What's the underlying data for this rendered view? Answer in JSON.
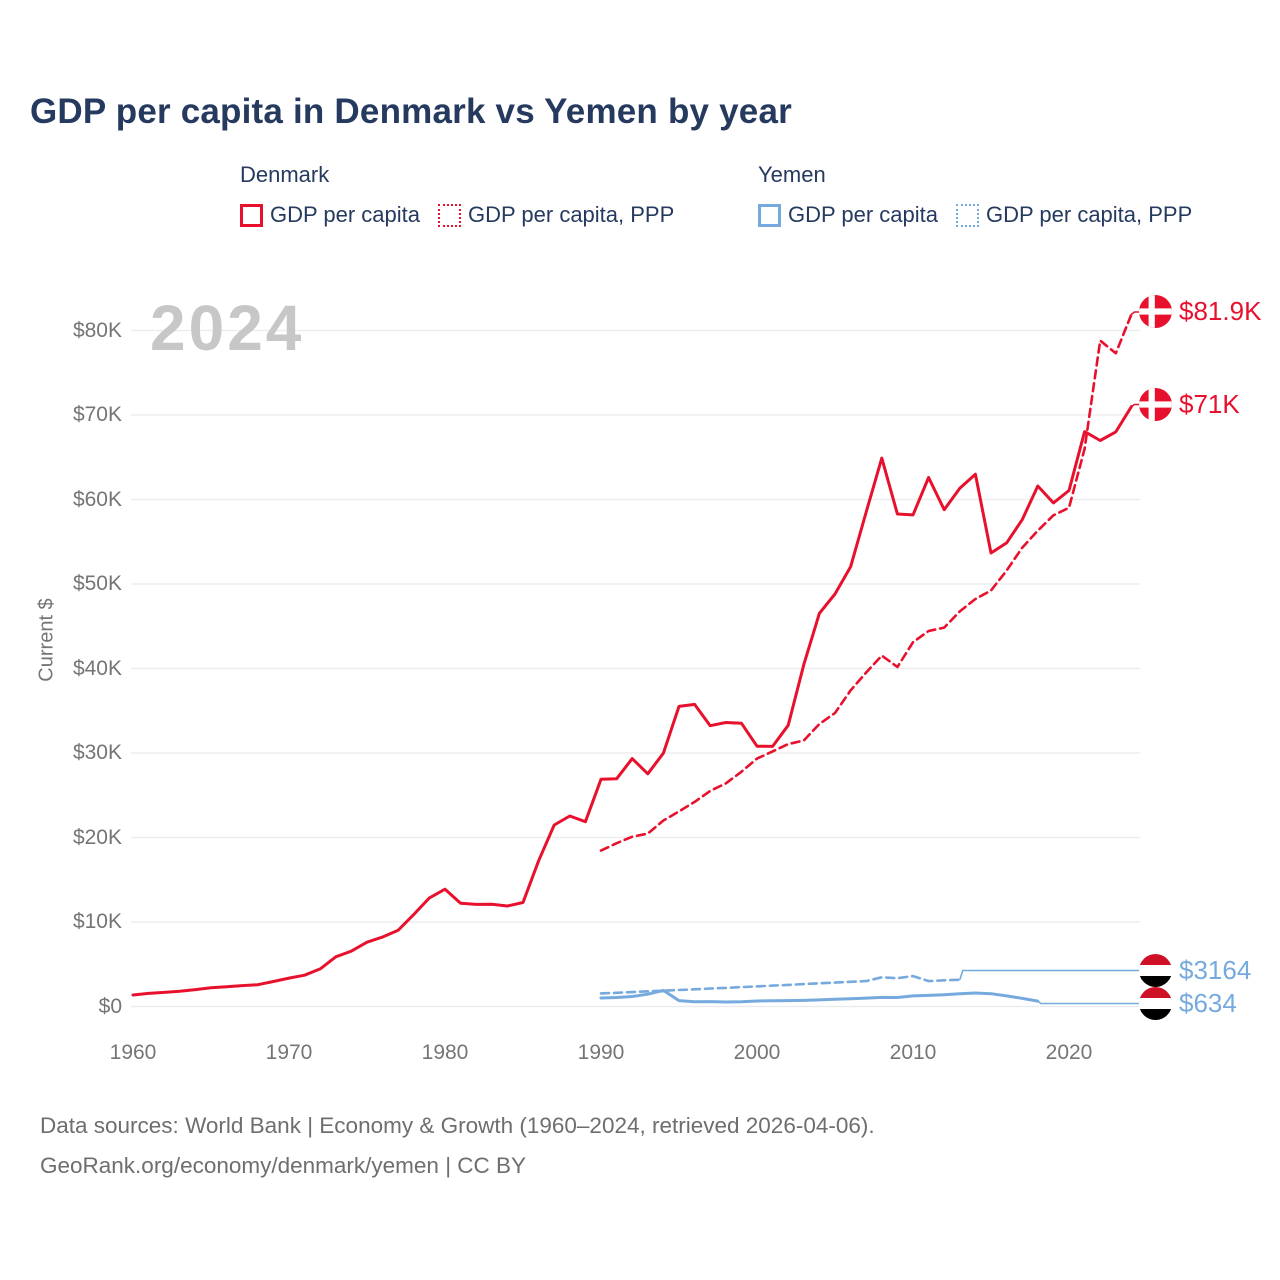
{
  "title": "GDP per capita in Denmark vs Yemen by year",
  "watermark": "2024",
  "legend": {
    "groups": [
      {
        "name": "Denmark",
        "color": "#e8112d",
        "items": [
          {
            "label": "GDP per capita",
            "style": "solid"
          },
          {
            "label": "GDP per capita, PPP",
            "style": "dotted"
          }
        ]
      },
      {
        "name": "Yemen",
        "color": "#76aade",
        "items": [
          {
            "label": "GDP per capita",
            "style": "solid"
          },
          {
            "label": "GDP per capita, PPP",
            "style": "dotted"
          }
        ]
      }
    ]
  },
  "y_axis": {
    "title": "Current $",
    "ticks": [
      "$0",
      "$10K",
      "$20K",
      "$30K",
      "$40K",
      "$50K",
      "$60K",
      "$70K",
      "$80K"
    ]
  },
  "x_axis": {
    "ticks": [
      "1960",
      "1970",
      "1980",
      "1990",
      "2000",
      "2010",
      "2020"
    ]
  },
  "footer": {
    "line1": "Data sources: World Bank | Economy & Growth (1960–2024, retrieved 2026-04-06).",
    "line2": "GeoRank.org/economy/denmark/yemen | CC BY"
  },
  "chart_data": {
    "type": "line",
    "title": "GDP per capita in Denmark vs Yemen by year",
    "ylabel": "Current $",
    "xlabel": "",
    "x_range": [
      1960,
      2024
    ],
    "y_range": [
      0,
      85000
    ],
    "grid": true,
    "legend_position": "top",
    "series": [
      {
        "name": "Denmark GDP per capita",
        "color": "#e8112d",
        "dash": "solid",
        "start_year": 1960,
        "end_year": 2024,
        "end_label": "$71K",
        "flag": "denmark",
        "values": [
          1365,
          1549,
          1667,
          1812,
          2003,
          2216,
          2348,
          2475,
          2585,
          2955,
          3366,
          3707,
          4455,
          5880,
          6554,
          7604,
          8230,
          9029,
          10896,
          12855,
          13886,
          12222,
          12077,
          12100,
          11894,
          12313,
          17244,
          21484,
          22541,
          21866,
          26892,
          26944,
          29332,
          27540,
          29993,
          35519,
          35757,
          33228,
          33606,
          33529,
          30804,
          30778,
          33276,
          40459,
          46538,
          48818,
          52032,
          58523,
          64902,
          58286,
          58177,
          62598,
          58788,
          61326,
          62997,
          53667,
          54862,
          57610,
          61599,
          59593,
          61063,
          68037,
          66983,
          68000,
          71000
        ]
      },
      {
        "name": "Denmark GDP per capita, PPP",
        "color": "#e8112d",
        "dash": "dashed",
        "start_year": 1990,
        "end_year": 2024,
        "end_label": "$81.9K",
        "flag": "denmark",
        "values": [
          18452,
          19331,
          20096,
          20462,
          22009,
          23088,
          24218,
          25512,
          26406,
          27770,
          29340,
          30186,
          31055,
          31476,
          33434,
          34737,
          37407,
          39523,
          41523,
          40183,
          43107,
          44439,
          44845,
          46757,
          48220,
          49228,
          51581,
          54300,
          56308,
          58126,
          59023,
          66000,
          78800,
          77300,
          81900
        ]
      },
      {
        "name": "Yemen GDP per capita",
        "color": "#76aade",
        "dash": "solid",
        "start_year": 1990,
        "end_year": 2018,
        "end_label": "$634",
        "flag": "yemen",
        "values": [
          1000,
          1060,
          1180,
          1450,
          1900,
          700,
          570,
          580,
          530,
          570,
          650,
          680,
          700,
          720,
          780,
          850,
          920,
          990,
          1080,
          1060,
          1250,
          1310,
          1380,
          1500,
          1600,
          1510,
          1250,
          960,
          634
        ]
      },
      {
        "name": "Yemen GDP per capita, PPP",
        "color": "#76aade",
        "dash": "dashed",
        "start_year": 1990,
        "end_year": 2013,
        "end_label": "$3164",
        "flag": "yemen",
        "values": [
          1550,
          1620,
          1700,
          1800,
          1870,
          1950,
          2040,
          2130,
          2200,
          2290,
          2380,
          2470,
          2560,
          2650,
          2740,
          2830,
          2920,
          3010,
          3450,
          3350,
          3600,
          3000,
          3100,
          3164
        ]
      }
    ]
  }
}
